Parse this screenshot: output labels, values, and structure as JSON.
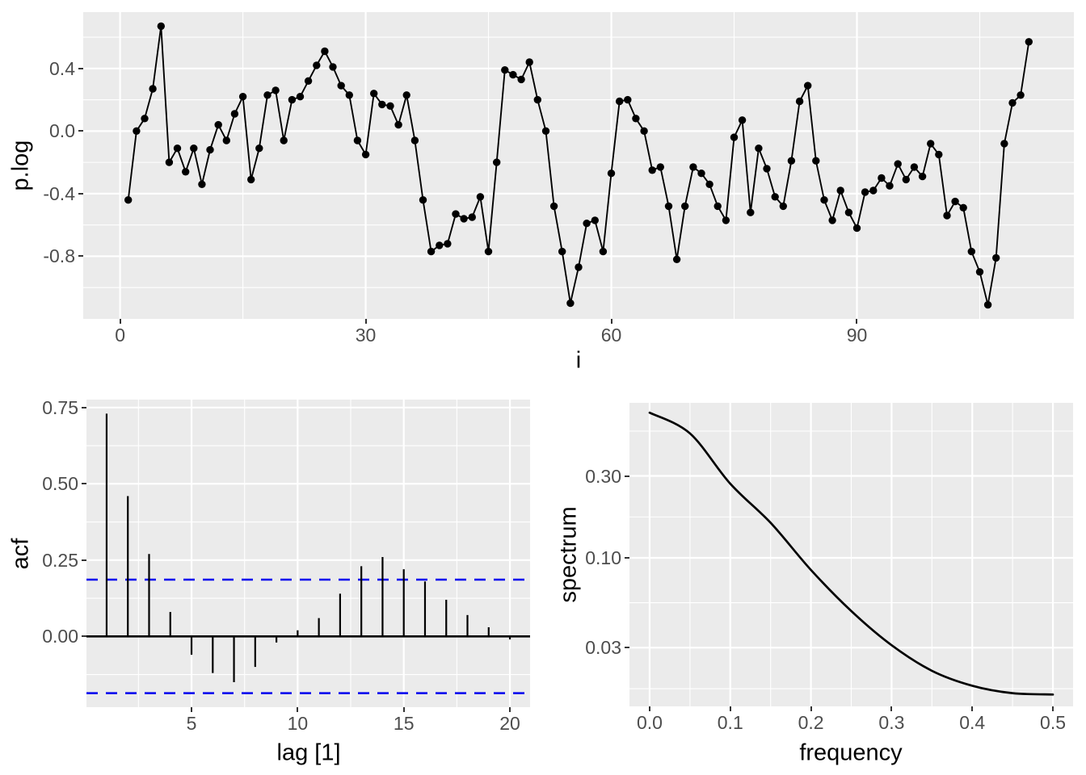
{
  "figure": {
    "background": "#FFFFFF",
    "panel_background": "#EBEBEB",
    "grid_color": "#FFFFFF",
    "tick_mark_color": "#333333",
    "tick_label_color": "#4D4D4D",
    "axis_title_color": "#000000",
    "data_color": "#000000",
    "conf_line_color": "#0000EE"
  },
  "chart_data": [
    {
      "id": "timeseries",
      "type": "line",
      "xlabel": "i",
      "ylabel": "p.log",
      "x_start": 1,
      "x_step": 1,
      "values": [
        -0.44,
        0.0,
        0.08,
        0.27,
        0.67,
        -0.2,
        -0.11,
        -0.26,
        -0.11,
        -0.34,
        -0.12,
        0.04,
        -0.06,
        0.11,
        0.22,
        -0.31,
        -0.11,
        0.23,
        0.26,
        -0.06,
        0.2,
        0.22,
        0.32,
        0.42,
        0.51,
        0.41,
        0.29,
        0.23,
        -0.06,
        -0.15,
        0.24,
        0.17,
        0.16,
        0.04,
        0.23,
        -0.06,
        -0.44,
        -0.77,
        -0.73,
        -0.72,
        -0.53,
        -0.56,
        -0.55,
        -0.42,
        -0.77,
        -0.2,
        0.39,
        0.36,
        0.33,
        0.44,
        0.2,
        0.0,
        -0.48,
        -0.77,
        -1.1,
        -0.87,
        -0.59,
        -0.57,
        -0.77,
        -0.27,
        0.19,
        0.2,
        0.08,
        0.0,
        -0.25,
        -0.23,
        -0.48,
        -0.82,
        -0.48,
        -0.23,
        -0.27,
        -0.34,
        -0.48,
        -0.57,
        -0.04,
        0.07,
        -0.52,
        -0.11,
        -0.24,
        -0.42,
        -0.48,
        -0.19,
        0.19,
        0.29,
        -0.19,
        -0.44,
        -0.57,
        -0.38,
        -0.52,
        -0.62,
        -0.39,
        -0.38,
        -0.3,
        -0.35,
        -0.21,
        -0.31,
        -0.23,
        -0.29,
        -0.08,
        -0.15,
        -0.54,
        -0.45,
        -0.49,
        -0.77,
        -0.9,
        -1.11,
        -0.81,
        -0.08,
        0.18,
        0.23,
        0.57
      ],
      "xlim": [
        -4.5,
        116.5
      ],
      "ylim": [
        -1.2,
        0.76
      ],
      "x_major": [
        0,
        30,
        60,
        90
      ],
      "x_major_labels": [
        "0",
        "30",
        "60",
        "90"
      ],
      "x_minor": [
        15,
        45,
        75,
        105
      ],
      "y_major": [
        0.4,
        0.0,
        -0.4,
        -0.8
      ],
      "y_major_labels": [
        "0.4",
        "0.0",
        "-0.4",
        "-0.8"
      ],
      "y_minor": [
        0.6,
        0.2,
        -0.2,
        -0.6,
        -1.0
      ],
      "grid": true,
      "legend": "none",
      "marker": "point"
    },
    {
      "id": "acf",
      "type": "bar",
      "xlabel": "lag [1]",
      "ylabel": "acf",
      "lag_start": 1,
      "values": [
        0.73,
        0.46,
        0.27,
        0.08,
        -0.06,
        -0.12,
        -0.15,
        -0.1,
        -0.02,
        0.02,
        0.06,
        0.14,
        0.23,
        0.26,
        0.22,
        0.18,
        0.12,
        0.07,
        0.03,
        -0.01
      ],
      "conf_bound": 0.186,
      "xlim": [
        0.05,
        20.95
      ],
      "ylim": [
        -0.232,
        0.776
      ],
      "x_major": [
        5,
        10,
        15,
        20
      ],
      "x_major_labels": [
        "5",
        "10",
        "15",
        "20"
      ],
      "x_minor": [
        2.5,
        7.5,
        12.5,
        17.5
      ],
      "y_major": [
        0.0,
        0.25,
        0.5,
        0.75
      ],
      "y_major_labels": [
        "0.00",
        "0.25",
        "0.50",
        "0.75"
      ],
      "y_minor": [
        -0.125,
        0.125,
        0.375,
        0.625
      ],
      "grid": true,
      "legend": "none"
    },
    {
      "id": "spectrum",
      "type": "line",
      "xlabel": "frequency",
      "ylabel": "spectrum",
      "yscale": "log10",
      "x": [
        0.0,
        0.05,
        0.1,
        0.15,
        0.2,
        0.25,
        0.3,
        0.35,
        0.4,
        0.45,
        0.5
      ],
      "values": [
        0.7,
        0.53,
        0.27,
        0.16,
        0.085,
        0.049,
        0.031,
        0.022,
        0.018,
        0.0163,
        0.016
      ],
      "xlim": [
        -0.025,
        0.525
      ],
      "ylim": [
        0.01365,
        0.799
      ],
      "x_major": [
        0.0,
        0.1,
        0.2,
        0.3,
        0.4,
        0.5
      ],
      "x_major_labels": [
        "0.0",
        "0.1",
        "0.2",
        "0.3",
        "0.4",
        "0.5"
      ],
      "x_minor": [
        0.05,
        0.15,
        0.25,
        0.35,
        0.45
      ],
      "y_major": [
        0.3,
        0.1,
        0.03
      ],
      "y_major_labels": [
        "0.30",
        "0.10",
        "0.03"
      ],
      "y_minor": [
        0.547,
        0.173,
        0.0548,
        0.0173
      ],
      "grid": true,
      "legend": "none",
      "marker": "none"
    }
  ]
}
